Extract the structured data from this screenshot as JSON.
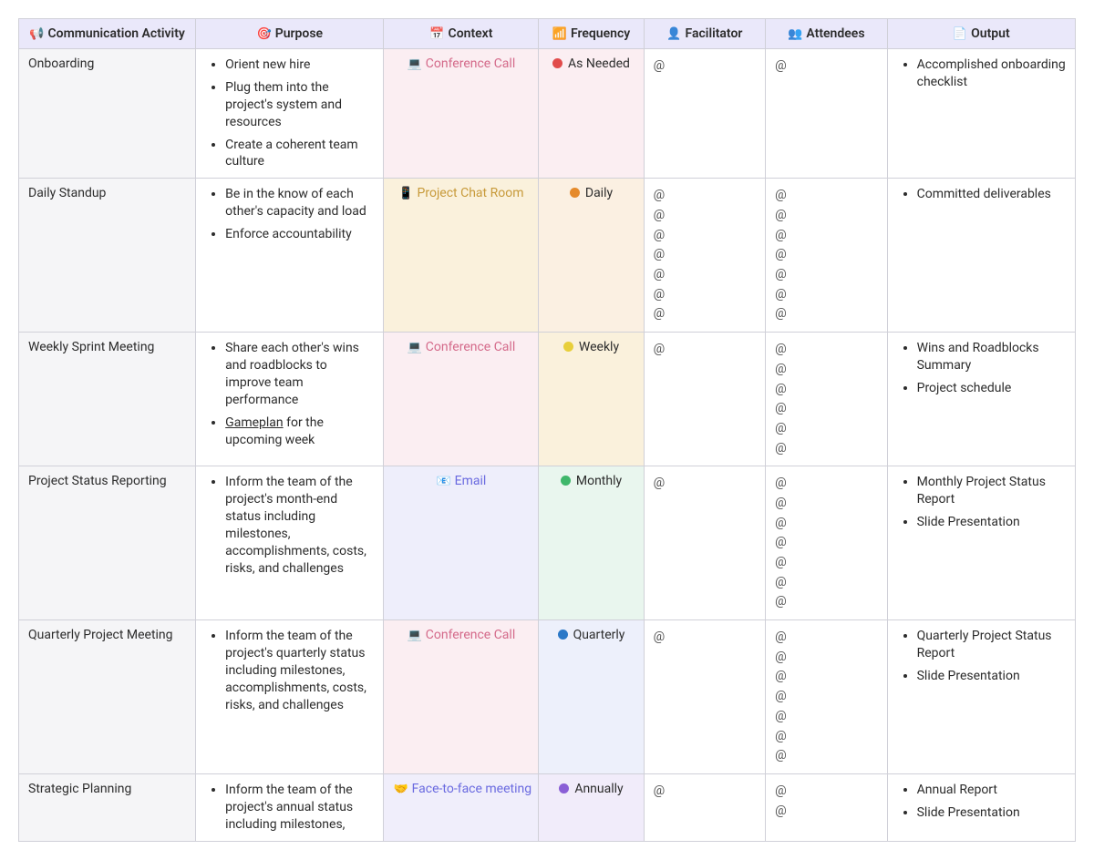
{
  "columns": [
    {
      "key": "activity",
      "label": "Communication Activity",
      "icon": "📢",
      "icon_color": "#6a6aa8"
    },
    {
      "key": "purpose",
      "label": "Purpose",
      "icon": "🎯",
      "icon_color": "#d98b8b"
    },
    {
      "key": "context",
      "label": "Context",
      "icon": "📅",
      "icon_color": "#5aa2e0"
    },
    {
      "key": "frequency",
      "label": "Frequency",
      "icon": "📶",
      "icon_color": "#b8b8b8"
    },
    {
      "key": "facilitator",
      "label": "Facilitator",
      "icon": "👤",
      "icon_color": "#7a7aa8"
    },
    {
      "key": "attendees",
      "label": "Attendees",
      "icon": "👥",
      "icon_color": "#7a7aa8"
    },
    {
      "key": "output",
      "label": "Output",
      "icon": "📄",
      "icon_color": "#b8b8b8"
    }
  ],
  "context_options": {
    "conference_call": {
      "label": "Conference Call",
      "icon": "💻",
      "text_color": "#d46a8a",
      "bg_color": "#fbeef2"
    },
    "project_chat_room": {
      "label": "Project Chat Room",
      "icon": "📱",
      "text_color": "#c79a3a",
      "bg_color": "#faf1dc"
    },
    "email": {
      "label": "Email",
      "icon": "📧",
      "text_color": "#6a6ae0",
      "bg_color": "#eeeefb"
    },
    "face_to_face_meeting": {
      "label": "Face-to-face meeting",
      "icon": "🤝",
      "text_color": "#6a6ae0",
      "bg_color": "#f0eefb"
    }
  },
  "frequency_options": {
    "as_needed": {
      "label": "As Needed",
      "dot_color": "#e14b4b",
      "bg_color": "#fbeef2"
    },
    "daily": {
      "label": "Daily",
      "dot_color": "#e58a2b",
      "bg_color": "#fbf0e2"
    },
    "weekly": {
      "label": "Weekly",
      "dot_color": "#e8cf3a",
      "bg_color": "#faf1dc"
    },
    "monthly": {
      "label": "Monthly",
      "dot_color": "#3fb76a",
      "bg_color": "#e9f6ee"
    },
    "quarterly": {
      "label": "Quarterly",
      "dot_color": "#2b78c7",
      "bg_color": "#edf0fb"
    },
    "annually": {
      "label": "Annually",
      "dot_color": "#8a5fd6",
      "bg_color": "#f1ecfa"
    }
  },
  "rows": [
    {
      "activity": "Onboarding",
      "purpose": [
        "Orient new hire",
        "Plug them into the project's system and resources",
        "Create a coherent team culture"
      ],
      "context": "conference_call",
      "frequency": "as_needed",
      "facilitator_count": 1,
      "attendees_count": 1,
      "output": [
        "Accomplished onboarding checklist"
      ]
    },
    {
      "activity": "Daily Standup",
      "purpose": [
        "Be in the know of each other's capacity and load",
        "Enforce accountability"
      ],
      "context": "project_chat_room",
      "frequency": "daily",
      "facilitator_count": 7,
      "attendees_count": 7,
      "output": [
        "Committed deliverables"
      ]
    },
    {
      "activity": "Weekly Sprint Meeting",
      "purpose": [
        "Share each other's wins and roadblocks to improve team performance",
        "<span class=\"underline\">Gameplan</span> for the upcoming week"
      ],
      "context": "conference_call",
      "frequency": "weekly",
      "facilitator_count": 1,
      "attendees_count": 6,
      "output": [
        "Wins and Roadblocks Summary",
        "Project schedule"
      ]
    },
    {
      "activity": "Project Status Reporting",
      "purpose": [
        "Inform the team of the project's month-end status including milestones, accomplishments, costs, risks, and challenges"
      ],
      "context": "email",
      "frequency": "monthly",
      "facilitator_count": 1,
      "attendees_count": 7,
      "output": [
        "Monthly Project Status Report",
        "Slide Presentation"
      ]
    },
    {
      "activity": "Quarterly Project Meeting",
      "purpose": [
        "Inform the team of the project's quarterly status including milestones, accomplishments, costs, risks, and challenges"
      ],
      "context": "conference_call",
      "frequency": "quarterly",
      "facilitator_count": 1,
      "attendees_count": 7,
      "output": [
        "Quarterly Project Status Report",
        "Slide Presentation"
      ]
    },
    {
      "activity": "Strategic Planning",
      "purpose": [
        "Inform the team of the project's annual status including milestones,"
      ],
      "context": "face_to_face_meeting",
      "frequency": "annually",
      "facilitator_count": 1,
      "attendees_count": 2,
      "output": [
        "Annual Report",
        "Slide Presentation"
      ]
    }
  ],
  "at_symbol": "@",
  "last_row_truncated": true
}
